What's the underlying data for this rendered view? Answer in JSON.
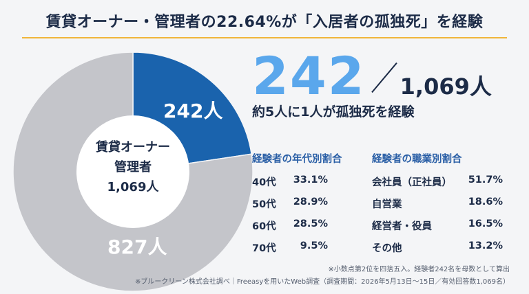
{
  "title": "賃貸オーナー・管理者の22.64%が「入居者の孤独死」を経験",
  "headline": {
    "count": "242",
    "total": "1,069人",
    "subtitle": "約5人に1人が孤独死を経験"
  },
  "donut_center": {
    "line1": "賃貸オーナー",
    "line2": "管理者",
    "line3": "1,069人"
  },
  "colors": {
    "experienced": "#1a63ad",
    "not_experienced": "#c4c5ca",
    "hole": "#ffffff",
    "accent_rule": "#f0b53a"
  },
  "chart_data": [
    {
      "type": "pie",
      "donut": true,
      "slices": [
        {
          "label": "242人",
          "value": 242
        },
        {
          "label": "827人",
          "value": 827
        }
      ]
    },
    {
      "type": "table",
      "title": "経験者の年代別割合",
      "rows": [
        {
          "label": "40代",
          "value": "33.1%"
        },
        {
          "label": "50代",
          "value": "28.9%"
        },
        {
          "label": "60代",
          "value": "28.5%"
        },
        {
          "label": "70代",
          "value": "9.5%"
        }
      ]
    },
    {
      "type": "table",
      "title": "経験者の職業別割合",
      "rows": [
        {
          "label": "会社員（正社員）",
          "value": "51.7%"
        },
        {
          "label": "自営業",
          "value": "18.6%"
        },
        {
          "label": "経営者・役員",
          "value": "16.5%"
        },
        {
          "label": "その他",
          "value": "13.2%"
        }
      ]
    }
  ],
  "notes": [
    "※小数点第2位を四捨五入。経験者242名を母数として算出",
    "※ブルークリーン株式会社調べ｜Freeasyを用いたWeb調査（調査期間：2026年5月13日〜15日／有効回答数1,069名）"
  ]
}
